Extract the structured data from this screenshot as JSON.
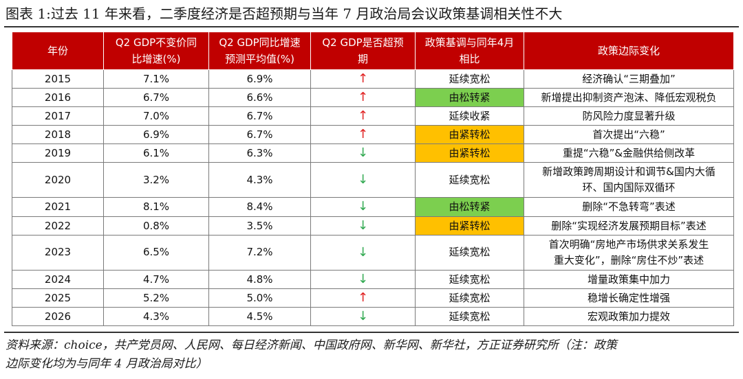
{
  "title": "图表 1:过去 11 年来看，二季度经济是否超预期与当年 7 月政治局会议政策基调相关性不大",
  "table": {
    "headers": [
      {
        "line1": "年份",
        "line2": ""
      },
      {
        "line1": "Q2 GDP不变价同",
        "line2": "比增速(%)"
      },
      {
        "line1": "Q2 GDP同比增速",
        "line2": "预测平均值(%)"
      },
      {
        "line1": "Q2 GDP是否超预",
        "line2": "期"
      },
      {
        "line1": "政策基调与同年4月",
        "line2": "相比"
      },
      {
        "line1": "政策边际变化",
        "line2": ""
      }
    ],
    "rows": [
      {
        "year": "2015",
        "actual": "7.1%",
        "forecast": "6.9%",
        "beat": "↑",
        "beat_dir": "up",
        "tone": "延续宽松",
        "tone_color": "none",
        "change_l1": "经济确认“三期叠加”",
        "change_l2": ""
      },
      {
        "year": "2016",
        "actual": "6.7%",
        "forecast": "6.6%",
        "beat": "↑",
        "beat_dir": "up",
        "tone": "由松转紧",
        "tone_color": "green",
        "change_l1": "新增提出抑制资产泡沫、降低宏观税负",
        "change_l2": ""
      },
      {
        "year": "2017",
        "actual": "7.0%",
        "forecast": "6.7%",
        "beat": "↑",
        "beat_dir": "up",
        "tone": "延续收紧",
        "tone_color": "none",
        "change_l1": "防风险力度显著升级",
        "change_l2": ""
      },
      {
        "year": "2018",
        "actual": "6.9%",
        "forecast": "6.7%",
        "beat": "↑",
        "beat_dir": "up",
        "tone": "由紧转松",
        "tone_color": "orange",
        "change_l1": "首次提出“六稳”",
        "change_l2": ""
      },
      {
        "year": "2019",
        "actual": "6.1%",
        "forecast": "6.3%",
        "beat": "↓",
        "beat_dir": "down",
        "tone": "由紧转松",
        "tone_color": "orange",
        "change_l1": "重提“六稳”&金融供给侧改革",
        "change_l2": ""
      },
      {
        "year": "2020",
        "actual": "3.2%",
        "forecast": "4.3%",
        "beat": "↓",
        "beat_dir": "down",
        "tone": "延续宽松",
        "tone_color": "none",
        "change_l1": "新增政策跨周期设计和调节&国内大循",
        "change_l2": "环、国内国际双循环"
      },
      {
        "year": "2021",
        "actual": "8.1%",
        "forecast": "8.4%",
        "beat": "↓",
        "beat_dir": "down",
        "tone": "由松转紧",
        "tone_color": "green",
        "change_l1": "删除“不急转弯”表述",
        "change_l2": ""
      },
      {
        "year": "2022",
        "actual": "0.8%",
        "forecast": "3.5%",
        "beat": "↓",
        "beat_dir": "down",
        "tone": "由紧转松",
        "tone_color": "orange",
        "change_l1": "删除“实现经济发展预期目标”表述",
        "change_l2": ""
      },
      {
        "year": "2023",
        "actual": "6.5%",
        "forecast": "7.2%",
        "beat": "↓",
        "beat_dir": "down",
        "tone": "延续宽松",
        "tone_color": "none",
        "change_l1": "首次明确“房地产市场供求关系发生",
        "change_l2": "重大变化”，删除“房住不炒”表述"
      },
      {
        "year": "2024",
        "actual": "4.7%",
        "forecast": "4.8%",
        "beat": "↓",
        "beat_dir": "down",
        "tone": "延续宽松",
        "tone_color": "none",
        "change_l1": "增量政策集中加力",
        "change_l2": ""
      },
      {
        "year": "2025",
        "actual": "5.2%",
        "forecast": "5.0%",
        "beat": "↑",
        "beat_dir": "up",
        "tone": "延续宽松",
        "tone_color": "none",
        "change_l1": "稳增长确定性增强",
        "change_l2": ""
      },
      {
        "year": "2026",
        "actual": "4.3%",
        "forecast": "4.5%",
        "beat": "↓",
        "beat_dir": "down",
        "tone": "延续宽松",
        "tone_color": "none",
        "change_l1": "宏观政策加力提效",
        "change_l2": ""
      }
    ]
  },
  "source": {
    "line1": "资料来源：choice，共产党员网、人民网、每日经济新闻、中国政府网、新华网、新华社，方正证券研究所（注：政策",
    "line2": "边际变化均为与同年 4 月政治局对比）"
  },
  "colors": {
    "header_bg": "#c00000",
    "up_arrow": "#e02020",
    "down_arrow": "#2fa84f",
    "tone_green": "#7ccf4f",
    "tone_orange": "#ffc000"
  }
}
